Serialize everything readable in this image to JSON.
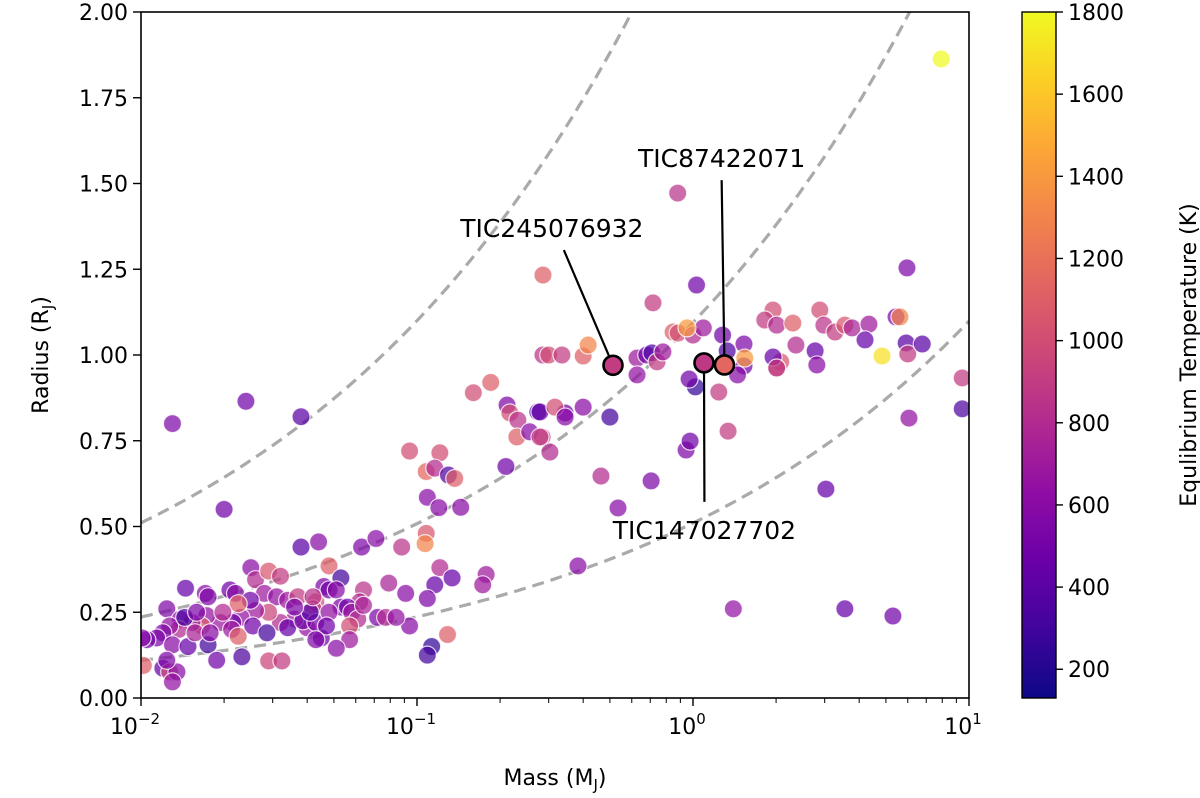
{
  "chart_data": {
    "type": "scatter",
    "xlabel": "Mass (M",
    "xlabel_sub": "J",
    "xlabel_close": ")",
    "ylabel": "Radius (R",
    "ylabel_sub": "J",
    "ylabel_close": ")",
    "xscale": "log",
    "xlim": [
      0.01,
      10
    ],
    "ylim": [
      0.0,
      2.0
    ],
    "x_ticks": [
      {
        "base": "10",
        "exp": "−2",
        "value": 0.01
      },
      {
        "base": "10",
        "exp": "−1",
        "value": 0.1
      },
      {
        "base": "10",
        "exp": "0",
        "value": 1
      },
      {
        "base": "10",
        "exp": "1",
        "value": 10
      }
    ],
    "y_ticks": [
      "0.00",
      "0.25",
      "0.50",
      "0.75",
      "1.00",
      "1.25",
      "1.50",
      "1.75",
      "2.00"
    ],
    "grid": false,
    "colorbar": {
      "label": "Equlibrium Temperature (K)",
      "colormap": "plasma",
      "range": [
        130,
        1800
      ],
      "ticks": [
        "200",
        "400",
        "600",
        "800",
        "1000",
        "1200",
        "1400",
        "1600",
        "1800"
      ],
      "stops": [
        "#0d0887",
        "#41049d",
        "#6a00a8",
        "#8f0da4",
        "#b12a90",
        "#cc4778",
        "#e16462",
        "#f2844b",
        "#fca636",
        "#fcce25",
        "#f0f921"
      ]
    },
    "reference_curves": {
      "style": "dashed",
      "color": "#aaaaaa",
      "form": "R = k * M^(1/3)",
      "k": [
        2.37,
        1.095,
        0.51
      ]
    },
    "points_columns": [
      "mass",
      "radius",
      "teq"
    ],
    "points": [
      [
        0.013,
        0.8,
        550
      ],
      [
        0.024,
        0.865,
        500
      ],
      [
        0.038,
        0.82,
        400
      ],
      [
        0.02,
        0.55,
        500
      ],
      [
        0.038,
        0.44,
        400
      ],
      [
        0.044,
        0.455,
        600
      ],
      [
        0.063,
        0.44,
        550
      ],
      [
        0.071,
        0.465,
        600
      ],
      [
        0.048,
        0.385,
        1100
      ],
      [
        0.053,
        0.35,
        300
      ],
      [
        0.046,
        0.325,
        550
      ],
      [
        0.064,
        0.315,
        850
      ],
      [
        0.062,
        0.28,
        800
      ],
      [
        0.079,
        0.335,
        750
      ],
      [
        0.091,
        0.305,
        600
      ],
      [
        0.094,
        0.21,
        600
      ],
      [
        0.109,
        0.585,
        600
      ],
      [
        0.12,
        0.555,
        600
      ],
      [
        0.144,
        0.556,
        600
      ],
      [
        0.21,
        0.675,
        500
      ],
      [
        0.094,
        0.72,
        1000
      ],
      [
        0.121,
        0.715,
        1000
      ],
      [
        0.108,
        0.66,
        1150
      ],
      [
        0.116,
        0.67,
        800
      ],
      [
        0.13,
        0.65,
        350
      ],
      [
        0.137,
        0.64,
        1100
      ],
      [
        0.108,
        0.48,
        1050
      ],
      [
        0.107,
        0.45,
        1300
      ],
      [
        0.088,
        0.44,
        850
      ],
      [
        0.121,
        0.38,
        800
      ],
      [
        0.116,
        0.33,
        450
      ],
      [
        0.134,
        0.35,
        450
      ],
      [
        0.178,
        0.36,
        700
      ],
      [
        0.173,
        0.33,
        700
      ],
      [
        0.109,
        0.29,
        550
      ],
      [
        0.113,
        0.15,
        250
      ],
      [
        0.109,
        0.125,
        300
      ],
      [
        0.129,
        0.185,
        1100
      ],
      [
        0.0124,
        0.26,
        550
      ],
      [
        0.0145,
        0.32,
        450
      ],
      [
        0.0171,
        0.305,
        600
      ],
      [
        0.0175,
        0.295,
        550
      ],
      [
        0.021,
        0.315,
        500
      ],
      [
        0.022,
        0.305,
        600
      ],
      [
        0.025,
        0.38,
        600
      ],
      [
        0.026,
        0.345,
        800
      ],
      [
        0.029,
        0.37,
        1050
      ],
      [
        0.032,
        0.355,
        900
      ],
      [
        0.028,
        0.305,
        700
      ],
      [
        0.031,
        0.295,
        650
      ],
      [
        0.034,
        0.285,
        700
      ],
      [
        0.037,
        0.295,
        900
      ],
      [
        0.043,
        0.28,
        1000
      ],
      [
        0.042,
        0.26,
        900
      ],
      [
        0.048,
        0.315,
        500
      ],
      [
        0.051,
        0.315,
        600
      ],
      [
        0.053,
        0.265,
        550
      ],
      [
        0.056,
        0.265,
        500
      ],
      [
        0.058,
        0.25,
        700
      ],
      [
        0.061,
        0.23,
        800
      ],
      [
        0.057,
        0.21,
        1000
      ],
      [
        0.057,
        0.17,
        700
      ],
      [
        0.051,
        0.145,
        600
      ],
      [
        0.045,
        0.175,
        500
      ],
      [
        0.04,
        0.205,
        650
      ],
      [
        0.036,
        0.23,
        700
      ],
      [
        0.032,
        0.22,
        800
      ],
      [
        0.029,
        0.25,
        950
      ],
      [
        0.026,
        0.255,
        700
      ],
      [
        0.023,
        0.235,
        650
      ],
      [
        0.0215,
        0.22,
        500
      ],
      [
        0.0194,
        0.22,
        700
      ],
      [
        0.0173,
        0.24,
        650
      ],
      [
        0.0166,
        0.21,
        1100
      ],
      [
        0.0153,
        0.22,
        700
      ],
      [
        0.0139,
        0.23,
        600
      ],
      [
        0.0137,
        0.2,
        800
      ],
      [
        0.0127,
        0.21,
        650
      ],
      [
        0.012,
        0.19,
        550
      ],
      [
        0.0114,
        0.175,
        550
      ],
      [
        0.0105,
        0.17,
        500
      ],
      [
        0.0101,
        0.175,
        600
      ],
      [
        0.013,
        0.155,
        600
      ],
      [
        0.0148,
        0.15,
        450
      ],
      [
        0.0175,
        0.155,
        300
      ],
      [
        0.0188,
        0.11,
        500
      ],
      [
        0.0232,
        0.12,
        350
      ],
      [
        0.029,
        0.108,
        950
      ],
      [
        0.0324,
        0.108,
        900
      ],
      [
        0.0102,
        0.095,
        1100
      ],
      [
        0.012,
        0.087,
        450
      ],
      [
        0.0127,
        0.076,
        1000
      ],
      [
        0.0135,
        0.076,
        600
      ],
      [
        0.013,
        0.047,
        650
      ],
      [
        0.0124,
        0.11,
        550
      ],
      [
        0.0144,
        0.235,
        350
      ],
      [
        0.0157,
        0.19,
        750
      ],
      [
        0.0178,
        0.19,
        600
      ],
      [
        0.0213,
        0.2,
        700
      ],
      [
        0.0254,
        0.21,
        500
      ],
      [
        0.0286,
        0.19,
        300
      ],
      [
        0.034,
        0.205,
        450
      ],
      [
        0.0386,
        0.225,
        500
      ],
      [
        0.043,
        0.22,
        550
      ],
      [
        0.048,
        0.25,
        650
      ],
      [
        0.047,
        0.21,
        500
      ],
      [
        0.041,
        0.25,
        400
      ],
      [
        0.036,
        0.265,
        550
      ],
      [
        0.0249,
        0.285,
        500
      ],
      [
        0.0225,
        0.275,
        1100
      ],
      [
        0.0198,
        0.25,
        800
      ],
      [
        0.0159,
        0.25,
        550
      ],
      [
        0.042,
        0.295,
        850
      ],
      [
        0.064,
        0.27,
        750
      ],
      [
        0.072,
        0.235,
        550
      ],
      [
        0.077,
        0.235,
        800
      ],
      [
        0.084,
        0.235,
        650
      ],
      [
        0.0225,
        0.18,
        1100
      ],
      [
        0.043,
        0.17,
        550
      ],
      [
        0.16,
        0.89,
        1000
      ],
      [
        0.185,
        0.92,
        1100
      ],
      [
        0.212,
        0.854,
        550
      ],
      [
        0.217,
        0.831,
        1000
      ],
      [
        0.232,
        0.81,
        850
      ],
      [
        0.23,
        0.761,
        1100
      ],
      [
        0.256,
        0.776,
        600
      ],
      [
        0.274,
        0.834,
        350
      ],
      [
        0.284,
        0.761,
        900
      ],
      [
        0.286,
        1.233,
        1100
      ],
      [
        0.286,
        1.0,
        850
      ],
      [
        0.88,
        1.472,
        850
      ],
      [
        1.03,
        1.204,
        500
      ],
      [
        0.716,
        1.152,
        900
      ],
      [
        5.96,
        1.254,
        550
      ],
      [
        7.93,
        1.863,
        1800
      ],
      [
        1.95,
        1.131,
        1000
      ],
      [
        1.82,
        1.102,
        900
      ],
      [
        2.01,
        1.087,
        800
      ],
      [
        2.3,
        1.093,
        1100
      ],
      [
        2.88,
        1.131,
        1000
      ],
      [
        2.98,
        1.087,
        850
      ],
      [
        3.27,
        1.067,
        900
      ],
      [
        3.55,
        1.087,
        1050
      ],
      [
        3.77,
        1.079,
        750
      ],
      [
        4.34,
        1.09,
        700
      ],
      [
        5.44,
        1.111,
        550
      ],
      [
        5.62,
        1.111,
        1300
      ],
      [
        4.2,
        1.044,
        450
      ],
      [
        5.92,
        1.035,
        400
      ],
      [
        2.36,
        1.029,
        800
      ],
      [
        2.77,
        1.012,
        450
      ],
      [
        4.84,
        0.997,
        1700
      ],
      [
        6.0,
        1.003,
        900
      ],
      [
        1.53,
        1.032,
        550
      ],
      [
        1.53,
        0.968,
        500
      ],
      [
        2.08,
        0.98,
        1050
      ],
      [
        2.01,
        0.962,
        900
      ],
      [
        2.81,
        0.971,
        600
      ],
      [
        9.45,
        0.843,
        350
      ],
      [
        9.45,
        0.933,
        900
      ],
      [
        6.06,
        0.816,
        650
      ],
      [
        3.03,
        0.609,
        450
      ],
      [
        1.4,
        0.26,
        650
      ],
      [
        3.55,
        0.26,
        450
      ],
      [
        5.3,
        0.239,
        500
      ],
      [
        0.944,
        0.723,
        550
      ],
      [
        0.976,
        0.749,
        500
      ],
      [
        1.34,
        0.778,
        900
      ],
      [
        0.705,
        0.633,
        550
      ],
      [
        0.464,
        0.647,
        800
      ],
      [
        0.535,
        0.554,
        600
      ],
      [
        0.5,
        0.819,
        300
      ],
      [
        0.4,
        0.848,
        600
      ],
      [
        0.344,
        0.831,
        500
      ],
      [
        1.02,
        0.907,
        250
      ],
      [
        0.968,
        0.93,
        500
      ],
      [
        1.24,
        0.892,
        900
      ],
      [
        1.45,
        0.942,
        600
      ],
      [
        0.847,
        1.067,
        1100
      ],
      [
        0.883,
        1.064,
        1000
      ],
      [
        1.0,
        1.058,
        800
      ],
      [
        1.09,
        1.079,
        700
      ],
      [
        1.28,
        1.058,
        500
      ],
      [
        0.951,
        1.079,
        1400
      ],
      [
        1.33,
        1.012,
        350
      ],
      [
        0.3,
        1.0,
        1000
      ],
      [
        0.335,
        1.0,
        900
      ],
      [
        0.4,
        0.997,
        1100
      ],
      [
        0.417,
        1.029,
        1300
      ],
      [
        0.627,
        0.991,
        700
      ],
      [
        0.68,
        1.0,
        500
      ],
      [
        0.71,
        1.006,
        350
      ],
      [
        0.741,
        0.98,
        900
      ],
      [
        0.778,
        1.009,
        700
      ],
      [
        0.627,
        0.942,
        650
      ],
      [
        0.279,
        0.834,
        450
      ],
      [
        0.316,
        0.848,
        1000
      ],
      [
        0.344,
        0.819,
        600
      ],
      [
        0.279,
        0.761,
        900
      ],
      [
        0.303,
        0.717,
        800
      ],
      [
        0.383,
        0.385,
        600
      ],
      [
        1.54,
        0.991,
        1400
      ],
      [
        1.95,
        0.994,
        450
      ],
      [
        2.01,
        0.962,
        900
      ],
      [
        6.77,
        1.032,
        400
      ]
    ],
    "highlighted": [
      {
        "label": "TIC245076932",
        "mass": 0.513,
        "radius": 0.97,
        "teq": 900,
        "label_at": [
          0.308,
          1.37
        ]
      },
      {
        "label": "TIC147027702",
        "mass": 1.096,
        "radius": 0.977,
        "teq": 880,
        "label_at": [
          1.1,
          0.49
        ]
      },
      {
        "label": "TIC87422071",
        "mass": 1.3,
        "radius": 0.971,
        "teq": 1150,
        "label_at": [
          1.27,
          1.574
        ]
      }
    ]
  }
}
